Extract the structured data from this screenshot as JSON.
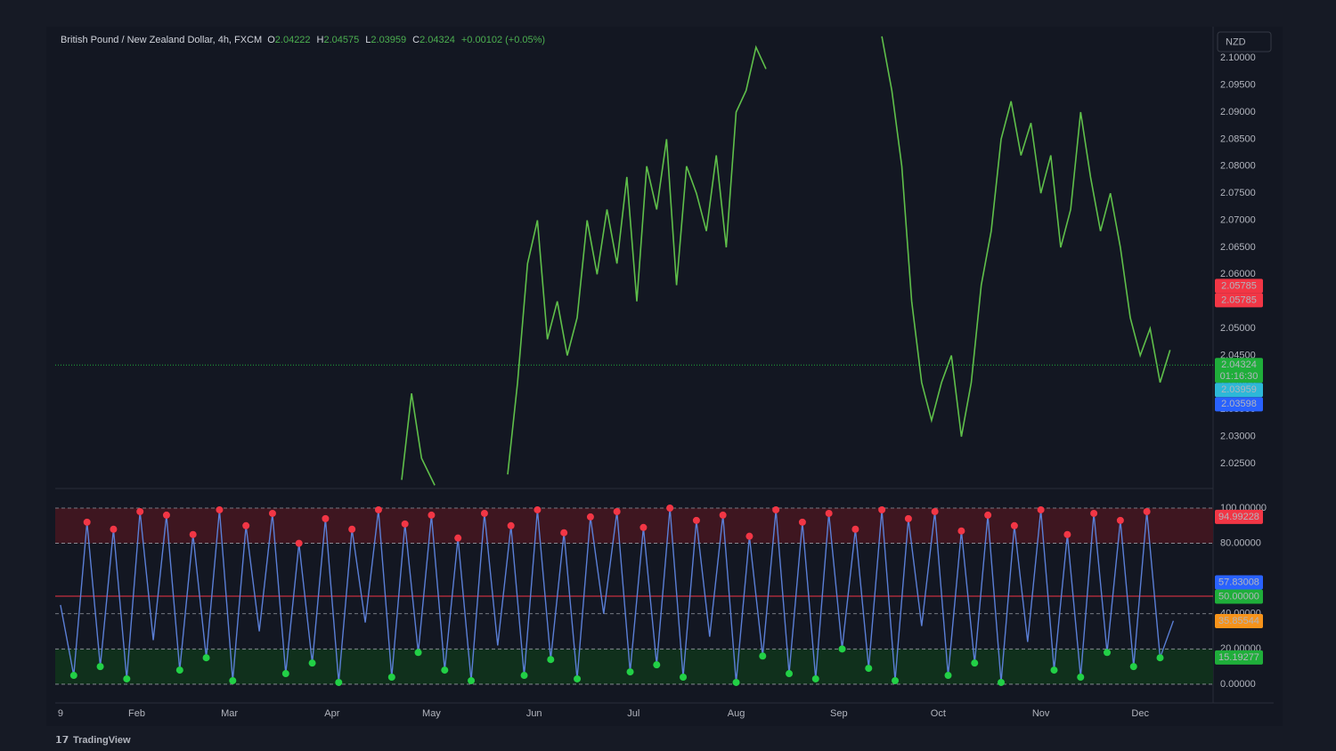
{
  "chart_data": [
    {
      "type": "line",
      "title": "British Pound / New Zealand Dollar, 4h, FXCM",
      "ohlc": [
        {
          "label": "O",
          "value": 2.04222
        },
        {
          "label": "H",
          "value": 2.04575
        },
        {
          "label": "L",
          "value": 2.03959
        },
        {
          "label": "C",
          "value": 2.04324
        }
      ],
      "change": "+0.00102 (+0.05%)",
      "currency": "NZD",
      "x": [
        103,
        106,
        109,
        113,
        120,
        135,
        138,
        141,
        144,
        147,
        150,
        153,
        156,
        159,
        162,
        165,
        168,
        171,
        174,
        177,
        180,
        183,
        186,
        189,
        192,
        195,
        198,
        201,
        204,
        207,
        210,
        213,
        230,
        248,
        251,
        254,
        257,
        260,
        263,
        266,
        269,
        272,
        275,
        278,
        281,
        284,
        287,
        290,
        293,
        296,
        299,
        302,
        305,
        308,
        311,
        314,
        317,
        320,
        323,
        326,
        329,
        332,
        335
      ],
      "series": [
        {
          "color": "#5fbf4a",
          "values": [
            2.022,
            2.038,
            2.026,
            2.021,
            null,
            2.023,
            2.04,
            2.062,
            2.07,
            2.048,
            2.055,
            2.045,
            2.052,
            2.07,
            2.06,
            2.072,
            2.062,
            2.078,
            2.055,
            2.08,
            2.072,
            2.085,
            2.058,
            2.08,
            2.075,
            2.068,
            2.082,
            2.065,
            2.09,
            2.094,
            2.102,
            2.098,
            null,
            2.104,
            2.094,
            2.08,
            2.055,
            2.04,
            2.033,
            2.04,
            2.045,
            2.03,
            2.04,
            2.058,
            2.068,
            2.085,
            2.092,
            2.082,
            2.088,
            2.075,
            2.082,
            2.065,
            2.072,
            2.09,
            2.078,
            2.068,
            2.075,
            2.065,
            2.052,
            2.045,
            2.05,
            2.04,
            2.046
          ]
        }
      ],
      "xlim": [
        -1.6,
        348
      ],
      "ylim": [
        2.0209,
        2.1053
      ],
      "yticks": [
        {
          "value": 2.1,
          "label": "2.10000"
        },
        {
          "value": 2.095,
          "label": "2.09500"
        },
        {
          "value": 2.09,
          "label": "2.09000"
        },
        {
          "value": 2.085,
          "label": "2.08500"
        },
        {
          "value": 2.08,
          "label": "2.08000"
        },
        {
          "value": 2.075,
          "label": "2.07500"
        },
        {
          "value": 2.07,
          "label": "2.07000"
        },
        {
          "value": 2.065,
          "label": "2.06500"
        },
        {
          "value": 2.06,
          "label": "2.06000"
        },
        {
          "value": 2.055,
          "label": "2.05500"
        },
        {
          "value": 2.05,
          "label": "2.05000"
        },
        {
          "value": 2.045,
          "label": "2.04500"
        },
        {
          "value": 2.04,
          "label": "2.04000"
        },
        {
          "value": 2.035,
          "label": "2.03500"
        },
        {
          "value": 2.03,
          "label": "2.03000"
        },
        {
          "value": 2.025,
          "label": "2.02500"
        }
      ],
      "last_price_line": true,
      "price_tags": [
        {
          "value": 2.05785,
          "color": "#f23645"
        },
        {
          "value": 2.05785,
          "color": "#f23645"
        },
        {
          "value": 2.04324,
          "color": "#1fae3a",
          "countdown": "01:16:30"
        },
        {
          "value": 2.03959,
          "color": "#2db8d8"
        },
        {
          "value": 2.03598,
          "color": "#2962ff"
        }
      ]
    },
    {
      "type": "line",
      "x": [
        0,
        4,
        8,
        12,
        16,
        20,
        24,
        28,
        32,
        36,
        40,
        44,
        48,
        52,
        56,
        60,
        64,
        68,
        72,
        76,
        80,
        84,
        88,
        92,
        96,
        100,
        104,
        108,
        112,
        116,
        120,
        124,
        128,
        132,
        136,
        140,
        144,
        148,
        152,
        156,
        160,
        164,
        168,
        172,
        176,
        180,
        184,
        188,
        192,
        196,
        200,
        204,
        208,
        212,
        216,
        220,
        224,
        228,
        232,
        236,
        240,
        244,
        248,
        252,
        256,
        260,
        264,
        268,
        272,
        276,
        280,
        284,
        288,
        292,
        296,
        300,
        304,
        308,
        312,
        316,
        320,
        324,
        328,
        332,
        336
      ],
      "series": [
        {
          "color": "#5b7fd6",
          "values": [
            45,
            5,
            92,
            10,
            88,
            3,
            98,
            25,
            96,
            8,
            85,
            15,
            99,
            2,
            90,
            30,
            97,
            6,
            80,
            12,
            94,
            1,
            88,
            35,
            99,
            4,
            91,
            18,
            96,
            8,
            83,
            2,
            97,
            22,
            90,
            5,
            99,
            14,
            86,
            3,
            95,
            40,
            98,
            7,
            89,
            11,
            100,
            4,
            93,
            27,
            96,
            1,
            84,
            16,
            99,
            6,
            92,
            3,
            97,
            20,
            88,
            9,
            99,
            2,
            94,
            33,
            98,
            5,
            87,
            12,
            96,
            1,
            90,
            24,
            99,
            8,
            85,
            4,
            97,
            18,
            93,
            10,
            98,
            15,
            36
          ]
        }
      ],
      "xlim": [
        -1.6,
        348
      ],
      "xticks": [
        {
          "value": 0,
          "label": "9"
        },
        {
          "value": 23,
          "label": "Feb"
        },
        {
          "value": 51,
          "label": "Mar"
        },
        {
          "value": 82,
          "label": "Apr"
        },
        {
          "value": 112,
          "label": "May"
        },
        {
          "value": 143,
          "label": "Jun"
        },
        {
          "value": 173,
          "label": "Jul"
        },
        {
          "value": 204,
          "label": "Aug"
        },
        {
          "value": 235,
          "label": "Sep"
        },
        {
          "value": 265,
          "label": "Oct"
        },
        {
          "value": 296,
          "label": "Nov"
        },
        {
          "value": 326,
          "label": "Dec"
        }
      ],
      "ylim": [
        -5.6,
        109.6
      ],
      "yticks": [
        {
          "value": 0,
          "label": "0.00000"
        },
        {
          "value": 20,
          "label": "20.00000"
        },
        {
          "value": 40,
          "label": "40.00000"
        },
        {
          "value": 80,
          "label": "80.00000"
        },
        {
          "value": 100,
          "label": "100.00000"
        }
      ],
      "bands": [
        {
          "from": 80,
          "to": 100,
          "color": "#3e1620"
        },
        {
          "from": 0,
          "to": 20,
          "color": "#10301c"
        }
      ],
      "midline": {
        "value": 50,
        "color": "#f23645"
      },
      "value_tags": [
        {
          "value": 94.99228,
          "color": "#f23645"
        },
        {
          "value": 57.83008,
          "color": "#2962ff"
        },
        {
          "value": 50,
          "label": "50.00000",
          "color": "#1fae3a"
        },
        {
          "value": 35.85544,
          "color": "#f7931a"
        },
        {
          "value": 15.19277,
          "color": "#1fae3a"
        }
      ]
    }
  ],
  "footer": "TradingView"
}
